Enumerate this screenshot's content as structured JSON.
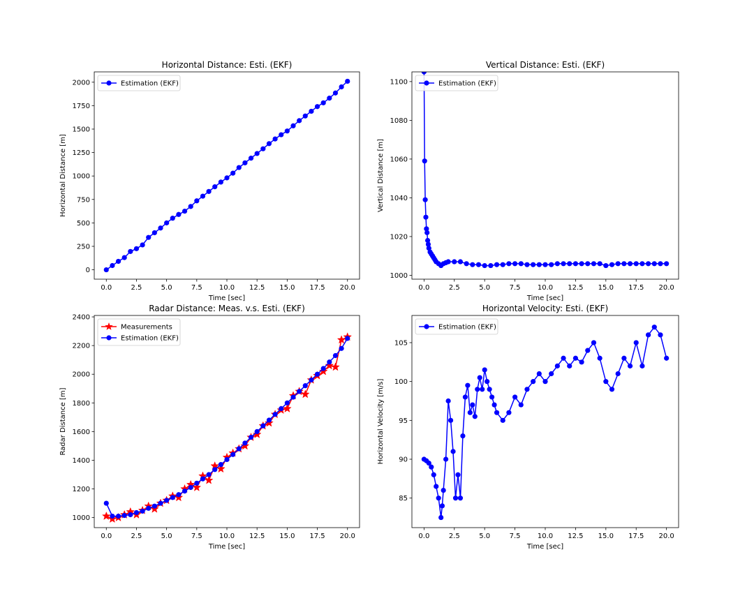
{
  "colors": {
    "estimation": "#0000ff",
    "measurements": "#ff0000",
    "legend_border": "#cccccc"
  },
  "chart_data": [
    {
      "type": "line",
      "title": "Horizontal Distance: Esti. (EKF)",
      "xlabel": "Time [sec]",
      "ylabel": "Horizontal Distance [m]",
      "xlim": [
        -1,
        21
      ],
      "ylim": [
        -100,
        2110
      ],
      "xticks": [
        "0.0",
        "2.5",
        "5.0",
        "7.5",
        "10.0",
        "12.5",
        "15.0",
        "17.5",
        "20.0"
      ],
      "yticks": [
        "0",
        "250",
        "500",
        "750",
        "1000",
        "1250",
        "1500",
        "1750",
        "2000"
      ],
      "grid": false,
      "legend": "top-left",
      "series": [
        {
          "name": "Estimation (EKF)",
          "marker": "circle",
          "color": "#0000ff",
          "x": [
            0,
            0.5,
            1,
            1.5,
            2,
            2.5,
            3,
            3.5,
            4,
            4.5,
            5,
            5.5,
            6,
            6.5,
            7,
            7.5,
            8,
            8.5,
            9,
            9.5,
            10,
            10.5,
            11,
            11.5,
            12,
            12.5,
            13,
            13.5,
            14,
            14.5,
            15,
            15.5,
            16,
            16.5,
            17,
            17.5,
            18,
            18.5,
            19,
            19.5,
            20
          ],
          "y": [
            0,
            45,
            90,
            130,
            195,
            225,
            265,
            345,
            395,
            445,
            500,
            550,
            590,
            625,
            675,
            735,
            785,
            835,
            885,
            935,
            980,
            1030,
            1090,
            1140,
            1190,
            1240,
            1290,
            1345,
            1395,
            1440,
            1480,
            1535,
            1590,
            1640,
            1690,
            1740,
            1780,
            1830,
            1885,
            1950,
            2010
          ]
        }
      ]
    },
    {
      "type": "line",
      "title": "Vertical Distance: Esti. (EKF)",
      "xlabel": "Time [sec]",
      "ylabel": "Vertical Distance [m]",
      "xlim": [
        -1,
        21
      ],
      "ylim": [
        998,
        1105
      ],
      "xticks": [
        "0.0",
        "2.5",
        "5.0",
        "7.5",
        "10.0",
        "12.5",
        "15.0",
        "17.5",
        "20.0"
      ],
      "yticks": [
        "1000",
        "1020",
        "1040",
        "1060",
        "1080",
        "1100"
      ],
      "grid": false,
      "legend": "top-left",
      "series": [
        {
          "name": "Estimation (EKF)",
          "marker": "circle",
          "color": "#0000ff",
          "x": [
            0,
            0.05,
            0.1,
            0.15,
            0.2,
            0.25,
            0.3,
            0.35,
            0.4,
            0.5,
            0.6,
            0.7,
            0.8,
            0.9,
            1.0,
            1.2,
            1.4,
            1.6,
            1.8,
            2.0,
            2.5,
            3.0,
            3.5,
            4.0,
            4.5,
            5.0,
            5.5,
            6.0,
            6.5,
            7.0,
            7.5,
            8.0,
            8.5,
            9.0,
            9.5,
            10.0,
            10.5,
            11.0,
            11.5,
            12.0,
            12.5,
            13.0,
            13.5,
            14.0,
            14.5,
            15.0,
            15.5,
            16.0,
            16.5,
            17.0,
            17.5,
            18.0,
            18.5,
            19.0,
            19.5,
            20.0
          ],
          "y": [
            1105,
            1059,
            1039,
            1030,
            1024,
            1022,
            1018,
            1016,
            1014,
            1012,
            1011,
            1010,
            1009,
            1008,
            1007,
            1006,
            1005,
            1006,
            1006.5,
            1007,
            1007,
            1007,
            1006,
            1005.5,
            1005.5,
            1005,
            1005,
            1005.5,
            1005.5,
            1006,
            1006,
            1006,
            1005.5,
            1005.5,
            1005.5,
            1005.5,
            1005.5,
            1006,
            1006,
            1006,
            1006,
            1006,
            1006,
            1006,
            1006,
            1005,
            1005.5,
            1006,
            1006,
            1006,
            1006,
            1006,
            1006,
            1006,
            1006,
            1006
          ]
        }
      ]
    },
    {
      "type": "line",
      "title": "Radar Distance: Meas. v.s. Esti. (EKF)",
      "xlabel": "Time [sec]",
      "ylabel": "Radar Distance [m]",
      "xlim": [
        -1,
        21
      ],
      "ylim": [
        930,
        2410
      ],
      "xticks": [
        "0.0",
        "2.5",
        "5.0",
        "7.5",
        "10.0",
        "12.5",
        "15.0",
        "17.5",
        "20.0"
      ],
      "yticks": [
        "1000",
        "1200",
        "1400",
        "1600",
        "1800",
        "2000",
        "2200",
        "2400"
      ],
      "grid": false,
      "legend": "top-left",
      "series": [
        {
          "name": "Measurements",
          "marker": "star",
          "color": "#ff0000",
          "x": [
            0,
            0.5,
            1,
            1.5,
            2,
            2.5,
            3,
            3.5,
            4,
            4.5,
            5,
            5.5,
            6,
            6.5,
            7,
            7.5,
            8,
            8.5,
            9,
            9.5,
            10,
            10.5,
            11,
            11.5,
            12,
            12.5,
            13,
            13.5,
            14,
            14.5,
            15,
            15.5,
            16,
            16.5,
            17,
            17.5,
            18,
            18.5,
            19,
            19.5,
            20
          ],
          "y": [
            1010,
            990,
            1000,
            1020,
            1040,
            1020,
            1050,
            1080,
            1060,
            1100,
            1120,
            1150,
            1140,
            1200,
            1230,
            1210,
            1290,
            1260,
            1360,
            1340,
            1420,
            1450,
            1480,
            1500,
            1560,
            1580,
            1640,
            1660,
            1720,
            1750,
            1760,
            1850,
            1880,
            1860,
            1960,
            1990,
            2020,
            2060,
            2050,
            2240,
            2260
          ]
        },
        {
          "name": "Estimation (EKF)",
          "marker": "circle",
          "color": "#0000ff",
          "x": [
            0,
            0.5,
            1,
            1.5,
            2,
            2.5,
            3,
            3.5,
            4,
            4.5,
            5,
            5.5,
            6,
            6.5,
            7,
            7.5,
            8,
            8.5,
            9,
            9.5,
            10,
            10.5,
            11,
            11.5,
            12,
            12.5,
            13,
            13.5,
            14,
            14.5,
            15,
            15.5,
            16,
            16.5,
            17,
            17.5,
            18,
            18.5,
            19,
            19.5,
            20
          ],
          "y": [
            1100,
            1010,
            1010,
            1015,
            1020,
            1035,
            1045,
            1065,
            1080,
            1100,
            1120,
            1140,
            1160,
            1185,
            1210,
            1240,
            1270,
            1300,
            1335,
            1370,
            1405,
            1440,
            1480,
            1520,
            1560,
            1600,
            1640,
            1680,
            1720,
            1760,
            1800,
            1840,
            1880,
            1920,
            1960,
            2000,
            2040,
            2085,
            2130,
            2180,
            2250
          ]
        }
      ]
    },
    {
      "type": "line",
      "title": "Horizontal Velocity: Esti. (EKF)",
      "xlabel": "Time [sec]",
      "ylabel": "Horizontal Velocity [m/s]",
      "xlim": [
        -1,
        21
      ],
      "ylim": [
        81.2,
        108.5
      ],
      "xticks": [
        "0.0",
        "2.5",
        "5.0",
        "7.5",
        "10.0",
        "12.5",
        "15.0",
        "17.5",
        "20.0"
      ],
      "yticks": [
        "85",
        "90",
        "95",
        "100",
        "105"
      ],
      "grid": false,
      "legend": "top-left",
      "series": [
        {
          "name": "Estimation (EKF)",
          "marker": "circle",
          "color": "#0000ff",
          "x": [
            0,
            0.2,
            0.4,
            0.6,
            0.8,
            1.0,
            1.2,
            1.4,
            1.5,
            1.6,
            1.8,
            2.0,
            2.2,
            2.4,
            2.6,
            2.8,
            3.0,
            3.2,
            3.4,
            3.6,
            3.8,
            4.0,
            4.2,
            4.4,
            4.6,
            4.8,
            5.0,
            5.2,
            5.4,
            5.6,
            5.8,
            6.0,
            6.5,
            7.0,
            7.5,
            8.0,
            8.5,
            9.0,
            9.5,
            10.0,
            10.5,
            11.0,
            11.5,
            12.0,
            12.5,
            13.0,
            13.5,
            14.0,
            14.5,
            15.0,
            15.5,
            16.0,
            16.5,
            17.0,
            17.5,
            18.0,
            18.5,
            19.0,
            19.5,
            20.0
          ],
          "y": [
            90,
            89.8,
            89.5,
            89,
            88,
            86.5,
            85,
            82.5,
            84,
            86,
            90,
            97.5,
            95,
            91,
            85,
            88,
            85,
            93,
            98,
            99.5,
            96,
            97,
            95.5,
            99,
            100.5,
            99,
            101.5,
            100,
            99,
            98,
            97,
            96,
            95,
            96,
            98,
            97,
            99,
            100,
            101,
            100,
            101,
            102,
            103,
            102,
            103,
            102.5,
            104,
            105,
            103,
            100,
            99,
            101,
            103,
            102,
            105,
            102,
            106,
            107,
            106,
            103
          ]
        }
      ]
    }
  ]
}
